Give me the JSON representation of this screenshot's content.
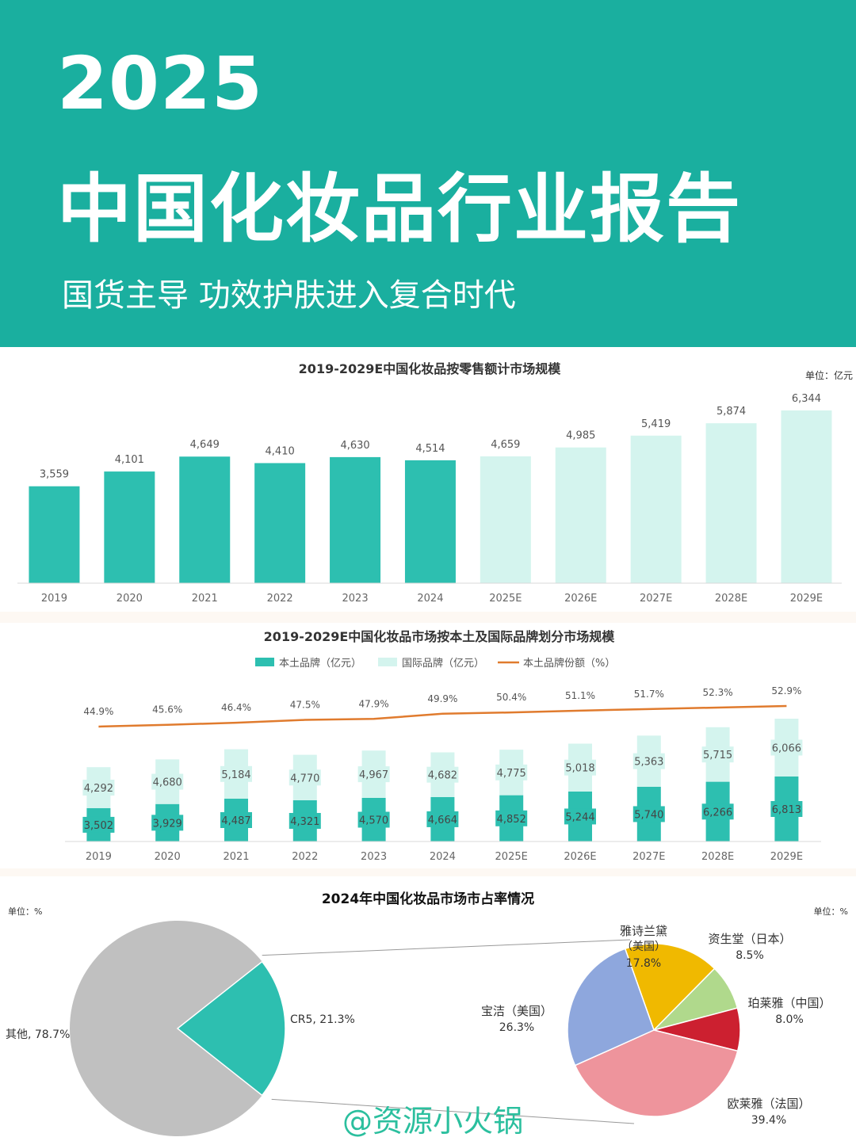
{
  "header": {
    "year": "2025",
    "title": "中国化妆品行业报告",
    "subtitle": "国货主导  功效护肤进入复合时代"
  },
  "colors": {
    "header_bg": "#1aaf9f",
    "actual": "#2dbfb0",
    "forecast": "#d4f4ee",
    "line": "#e07b2e",
    "others": "#c0c0c0",
    "cr5": "#2dbfb0"
  },
  "watermark": "@资源小火锅",
  "chart_data": [
    {
      "type": "bar",
      "title": "2019-2029E中国化妆品按零售额计市场规模",
      "unit_label": "单位：亿元",
      "categories": [
        "2019",
        "2020",
        "2021",
        "2022",
        "2023",
        "2024",
        "2025E",
        "2026E",
        "2027E",
        "2028E",
        "2029E"
      ],
      "values": [
        3559,
        4101,
        4649,
        4410,
        4630,
        4514,
        4659,
        4985,
        5419,
        5874,
        6344
      ],
      "value_labels": [
        "3,559",
        "4,101",
        "4,649",
        "4,410",
        "4,630",
        "4,514",
        "4,659",
        "4,985",
        "5,419",
        "5,874",
        "6,344"
      ],
      "forecast_from_index": 6,
      "ylim": [
        0,
        6600
      ]
    },
    {
      "type": "bar",
      "stacked": true,
      "title": "2019-2029E中国化妆品市场按本土及国际品牌划分市场规模",
      "categories": [
        "2019",
        "2020",
        "2021",
        "2022",
        "2023",
        "2024",
        "2025E",
        "2026E",
        "2027E",
        "2028E",
        "2029E"
      ],
      "series": [
        {
          "name": "本土品牌（亿元）",
          "values": [
            3502,
            3929,
            4487,
            4321,
            4570,
            4664,
            4852,
            5244,
            5740,
            6266,
            6813
          ],
          "labels": [
            "3,502",
            "3,929",
            "4,487",
            "4,321",
            "4,570",
            "4,664",
            "4,852",
            "5,244",
            "5,740",
            "6,266",
            "6,813"
          ]
        },
        {
          "name": "国际品牌（亿元）",
          "values": [
            4292,
            4680,
            5184,
            4770,
            4967,
            4682,
            4775,
            5018,
            5363,
            5715,
            6066
          ],
          "labels": [
            "4,292",
            "4,680",
            "5,184",
            "4,770",
            "4,967",
            "4,682",
            "4,775",
            "5,018",
            "5,363",
            "5,715",
            "6,066"
          ]
        }
      ],
      "line_series": {
        "name": "本土品牌份额（%）",
        "values": [
          44.9,
          45.6,
          46.4,
          47.5,
          47.9,
          49.9,
          50.4,
          51.1,
          51.7,
          52.3,
          52.9
        ],
        "labels": [
          "44.9%",
          "45.6%",
          "46.4%",
          "47.5%",
          "47.9%",
          "49.9%",
          "50.4%",
          "51.1%",
          "51.7%",
          "52.3%",
          "52.9%"
        ]
      },
      "ylim": [
        0,
        13000
      ]
    },
    {
      "type": "pie",
      "title": "2024年中国化妆品市场市占率情况",
      "unit_left": "单位：%",
      "unit_right": "单位：%",
      "slices": [
        {
          "label": "其他, 78.7%",
          "value": 78.7
        },
        {
          "label": "CR5, 21.3%",
          "value": 21.3
        }
      ],
      "breakdown": [
        {
          "name": "雅诗兰黛",
          "sub": "（美国）",
          "pct": "17.8%",
          "value": 17.8,
          "color": "#f0b900"
        },
        {
          "name": "资生堂（日本）",
          "pct": "8.5%",
          "value": 8.5,
          "color": "#b0d98c"
        },
        {
          "name": "珀莱雅（中国）",
          "pct": "8.0%",
          "value": 8.0,
          "color": "#cc2030"
        },
        {
          "name": "欧莱雅（法国）",
          "pct": "39.4%",
          "value": 39.4,
          "color": "#ee949c"
        },
        {
          "name": "宝洁（美国）",
          "pct": "26.3%",
          "value": 26.3,
          "color": "#8ea7dd"
        }
      ]
    }
  ]
}
